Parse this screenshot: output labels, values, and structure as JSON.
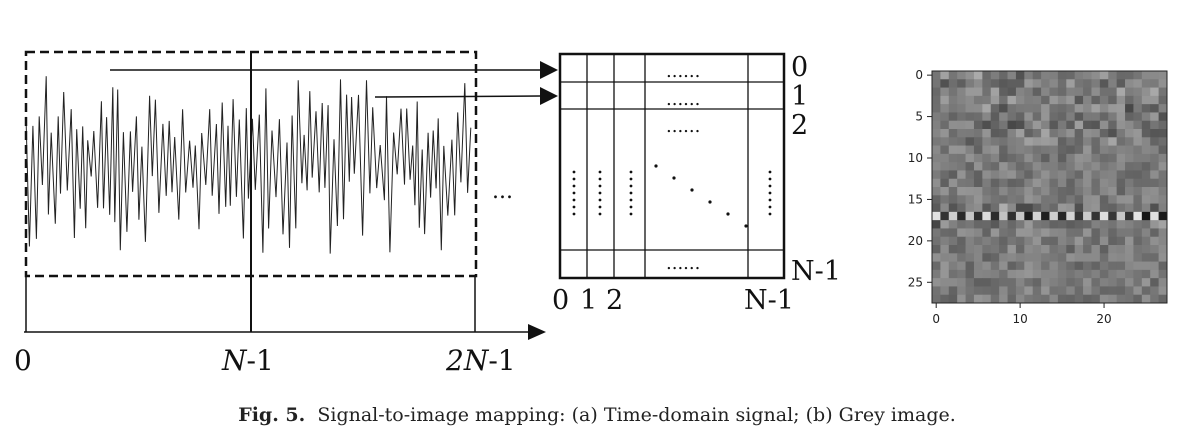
{
  "signal_panel": {
    "axis_labels": {
      "zero": "0",
      "n_minus_1_prefix": "N",
      "n_minus_1_suffix": "-1",
      "two_n_prefix": "2N",
      "two_n_suffix": "-1"
    },
    "continuation": "..."
  },
  "matrix_panel": {
    "row_labels": [
      "0",
      "1",
      "2",
      "N-1"
    ],
    "col_labels": [
      "0",
      "1",
      "2",
      "N-1"
    ],
    "dots_h": "......"
  },
  "image_panel": {
    "y_ticks": [
      "0",
      "5",
      "10",
      "15",
      "20",
      "25"
    ],
    "x_ticks": [
      "0",
      "10",
      "20"
    ],
    "grid_size": 28
  },
  "caption": {
    "label": "Fig. 5.",
    "text": "Signal-to-image mapping: (a) Time-domain signal; (b) Grey image."
  }
}
